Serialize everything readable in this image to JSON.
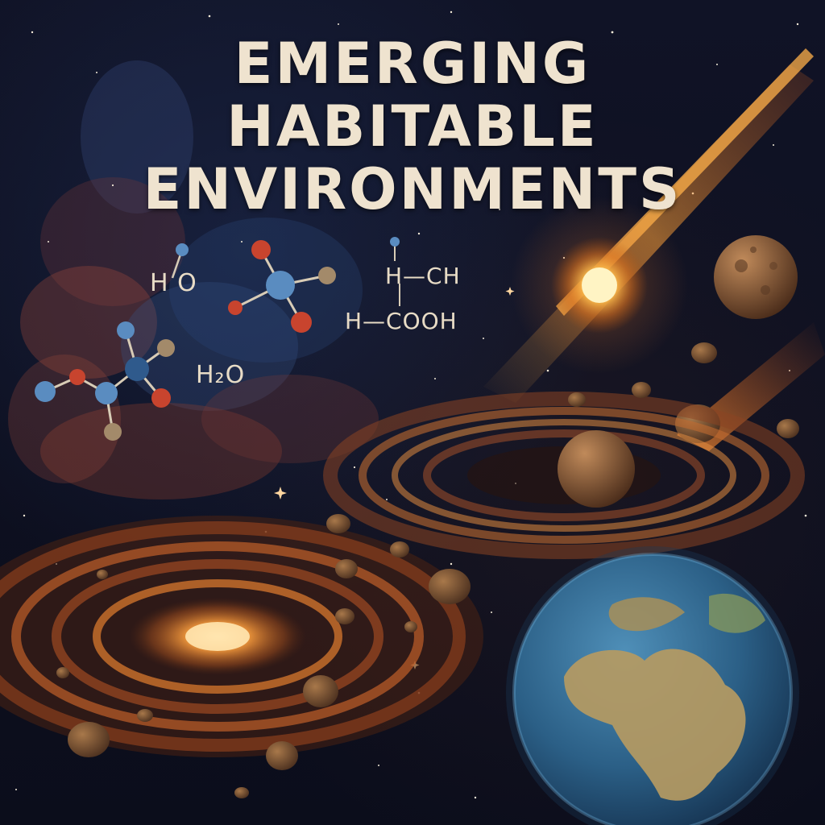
{
  "title": {
    "line1": "EMERGING",
    "line2": "HABITABLE",
    "line3": "ENVIRONMENTS"
  },
  "formulas": {
    "water_label_top": "H  O",
    "water_label": "H₂O",
    "methane_label": "H—CH",
    "acid_label": "H—COOH"
  },
  "colors": {
    "background": "#0d0f1e",
    "title_text": "#efe3cf",
    "nebula_red": "#b4503c",
    "nebula_blue": "#3c5a8c",
    "star_glow": "#ffb84a",
    "atom_red": "#c8442e",
    "atom_blue": "#5a8cc0",
    "atom_tan": "#a38a6a",
    "ocean_blue": "#2f6e9a",
    "land": "#b59a62"
  }
}
